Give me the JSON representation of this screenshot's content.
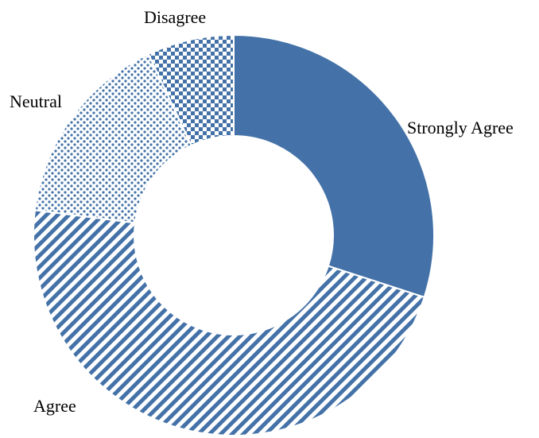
{
  "chart_data": {
    "type": "pie",
    "variant": "donut",
    "title": "",
    "legend": "none",
    "color": "#4472A8",
    "slices": [
      {
        "label": "Strongly Agree",
        "value": 30,
        "fill": "solid"
      },
      {
        "label": "Agree",
        "value": 47,
        "fill": "diagonal-stripes"
      },
      {
        "label": "Neutral",
        "value": 16,
        "fill": "dots"
      },
      {
        "label": "Disagree",
        "value": 7,
        "fill": "checkerboard"
      }
    ]
  }
}
